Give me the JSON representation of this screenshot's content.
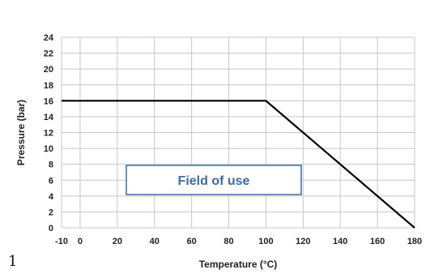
{
  "chart_data": {
    "type": "line",
    "title": "",
    "xlabel": "Temperature (°C)",
    "ylabel": "Pressure (bar)",
    "xlim": [
      -10,
      180
    ],
    "ylim": [
      0,
      24
    ],
    "x_ticks": [
      -10,
      0,
      20,
      40,
      60,
      80,
      100,
      120,
      140,
      160,
      180
    ],
    "y_ticks": [
      0,
      2,
      4,
      6,
      8,
      10,
      12,
      14,
      16,
      18,
      20,
      22,
      24
    ],
    "grid": true,
    "series": [
      {
        "x": [
          -10,
          100,
          180
        ],
        "y": [
          16,
          16,
          0
        ]
      }
    ],
    "annotations": [
      {
        "text": "Field of use"
      }
    ],
    "line_color": "#000000",
    "grid_color": "#c8c8c8",
    "annotation_border_color": "#3f6aa3",
    "annotation_text_color": "#3f6aa3"
  },
  "page": {
    "corner_mark": "1"
  }
}
